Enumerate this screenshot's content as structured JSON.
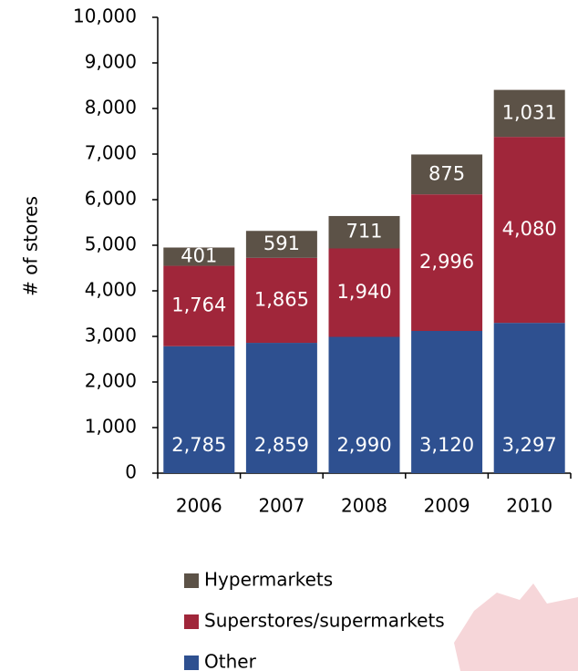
{
  "chart_data": {
    "type": "stacked_bar",
    "y_label": "# of stores",
    "categories": [
      "2006",
      "2007",
      "2008",
      "2009",
      "2010"
    ],
    "series": [
      {
        "name": "Other",
        "color": "#2e5090",
        "values": [
          2785,
          2859,
          2990,
          3120,
          3297
        ],
        "value_labels": [
          "2,785",
          "2,859",
          "2,990",
          "3,120",
          "3,297"
        ]
      },
      {
        "name": "Superstores/supermarkets",
        "color": "#a0263a",
        "values": [
          1764,
          1865,
          1940,
          2996,
          4080
        ],
        "value_labels": [
          "1,764",
          "1,865",
          "1,940",
          "2,996",
          "4,080"
        ]
      },
      {
        "name": "Hypermarkets",
        "color": "#5c5247",
        "values": [
          401,
          591,
          711,
          875,
          1031
        ],
        "value_labels": [
          "401",
          "591",
          "711",
          "875",
          "1,031"
        ]
      }
    ],
    "ylim": [
      0,
      10000
    ],
    "yticks": [
      0,
      {
        "value": 1000,
        "label": "1,000"
      },
      {
        "value": 2000,
        "label": "2,000"
      },
      {
        "value": 3000,
        "label": "3,000"
      },
      {
        "value": 4000,
        "label": "4,000"
      },
      {
        "value": 5000,
        "label": "5,000"
      },
      {
        "value": 6000,
        "label": "6,000"
      },
      {
        "value": 7000,
        "label": "7,000"
      },
      {
        "value": 8000,
        "label": "8,000"
      },
      {
        "value": 9000,
        "label": "9,000"
      },
      {
        "value": 10000,
        "label": "10,000"
      }
    ]
  }
}
